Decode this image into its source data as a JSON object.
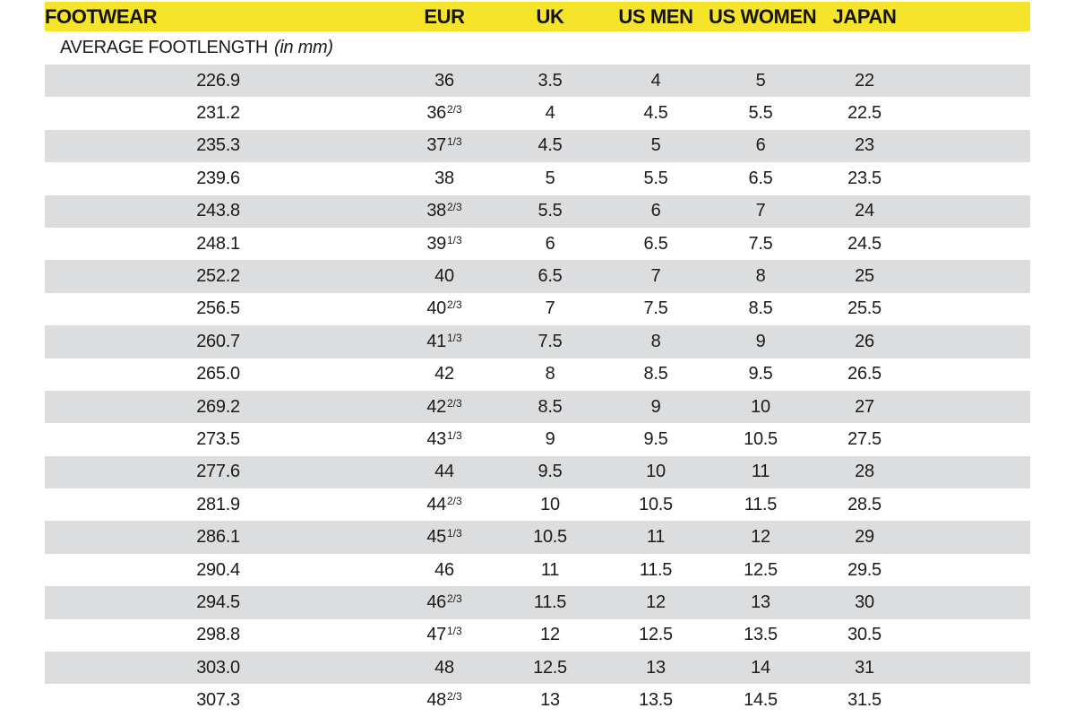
{
  "colors": {
    "header_bg": "#F6E42A",
    "row_alt_bg": "#DCDDDE",
    "row_bg": "#FFFFFF",
    "text": "#1B1B1B"
  },
  "table": {
    "header": [
      "FOOTWEAR",
      "EUR",
      "UK",
      "US MEN",
      "US WOMEN",
      "JAPAN"
    ],
    "subheader": {
      "label": "AVERAGE FOOTLENGTH",
      "note": "(in mm)"
    },
    "rows": [
      [
        "226.9",
        "36",
        "3.5",
        "4",
        "5",
        "22"
      ],
      [
        "231.2",
        "36^2/3",
        "4",
        "4.5",
        "5.5",
        "22.5"
      ],
      [
        "235.3",
        "37^1/3",
        "4.5",
        "5",
        "6",
        "23"
      ],
      [
        "239.6",
        "38",
        "5",
        "5.5",
        "6.5",
        "23.5"
      ],
      [
        "243.8",
        "38^2/3",
        "5.5",
        "6",
        "7",
        "24"
      ],
      [
        "248.1",
        "39^1/3",
        "6",
        "6.5",
        "7.5",
        "24.5"
      ],
      [
        "252.2",
        "40",
        "6.5",
        "7",
        "8",
        "25"
      ],
      [
        "256.5",
        "40^2/3",
        "7",
        "7.5",
        "8.5",
        "25.5"
      ],
      [
        "260.7",
        "41^1/3",
        "7.5",
        "8",
        "9",
        "26"
      ],
      [
        "265.0",
        "42",
        "8",
        "8.5",
        "9.5",
        "26.5"
      ],
      [
        "269.2",
        "42^2/3",
        "8.5",
        "9",
        "10",
        "27"
      ],
      [
        "273.5",
        "43^1/3",
        "9",
        "9.5",
        "10.5",
        "27.5"
      ],
      [
        "277.6",
        "44",
        "9.5",
        "10",
        "11",
        "28"
      ],
      [
        "281.9",
        "44^2/3",
        "10",
        "10.5",
        "11.5",
        "28.5"
      ],
      [
        "286.1",
        "45^1/3",
        "10.5",
        "11",
        "12",
        "29"
      ],
      [
        "290.4",
        "46",
        "11",
        "11.5",
        "12.5",
        "29.5"
      ],
      [
        "294.5",
        "46^2/3",
        "11.5",
        "12",
        "13",
        "30"
      ],
      [
        "298.8",
        "47^1/3",
        "12",
        "12.5",
        "13.5",
        "30.5"
      ],
      [
        "303.0",
        "48",
        "12.5",
        "13",
        "14",
        "31"
      ],
      [
        "307.3",
        "48^2/3",
        "13",
        "13.5",
        "14.5",
        "31.5"
      ]
    ]
  },
  "chart_data": {
    "type": "table",
    "title": "Footwear size conversion chart",
    "columns": [
      "FOOTWEAR (average footlength in mm)",
      "EUR",
      "UK",
      "US MEN",
      "US WOMEN",
      "JAPAN"
    ],
    "rows": [
      [
        226.9,
        "36",
        3.5,
        4,
        5,
        22
      ],
      [
        231.2,
        "36 2/3",
        4,
        4.5,
        5.5,
        22.5
      ],
      [
        235.3,
        "37 1/3",
        4.5,
        5,
        6,
        23
      ],
      [
        239.6,
        "38",
        5,
        5.5,
        6.5,
        23.5
      ],
      [
        243.8,
        "38 2/3",
        5.5,
        6,
        7,
        24
      ],
      [
        248.1,
        "39 1/3",
        6,
        6.5,
        7.5,
        24.5
      ],
      [
        252.2,
        "40",
        6.5,
        7,
        8,
        25
      ],
      [
        256.5,
        "40 2/3",
        7,
        7.5,
        8.5,
        25.5
      ],
      [
        260.7,
        "41 1/3",
        7.5,
        8,
        9,
        26
      ],
      [
        265.0,
        "42",
        8,
        8.5,
        9.5,
        26.5
      ],
      [
        269.2,
        "42 2/3",
        8.5,
        9,
        10,
        27
      ],
      [
        273.5,
        "43 1/3",
        9,
        9.5,
        10.5,
        27.5
      ],
      [
        277.6,
        "44",
        9.5,
        10,
        11,
        28
      ],
      [
        281.9,
        "44 2/3",
        10,
        10.5,
        11.5,
        28.5
      ],
      [
        286.1,
        "45 1/3",
        10.5,
        11,
        12,
        29
      ],
      [
        290.4,
        "46",
        11,
        11.5,
        12.5,
        29.5
      ],
      [
        294.5,
        "46 2/3",
        11.5,
        12,
        13,
        30
      ],
      [
        298.8,
        "47 1/3",
        12,
        12.5,
        13.5,
        30.5
      ],
      [
        303.0,
        "48",
        12.5,
        13,
        14,
        31
      ],
      [
        307.3,
        "48 2/3",
        13,
        13.5,
        14.5,
        31.5
      ]
    ]
  }
}
